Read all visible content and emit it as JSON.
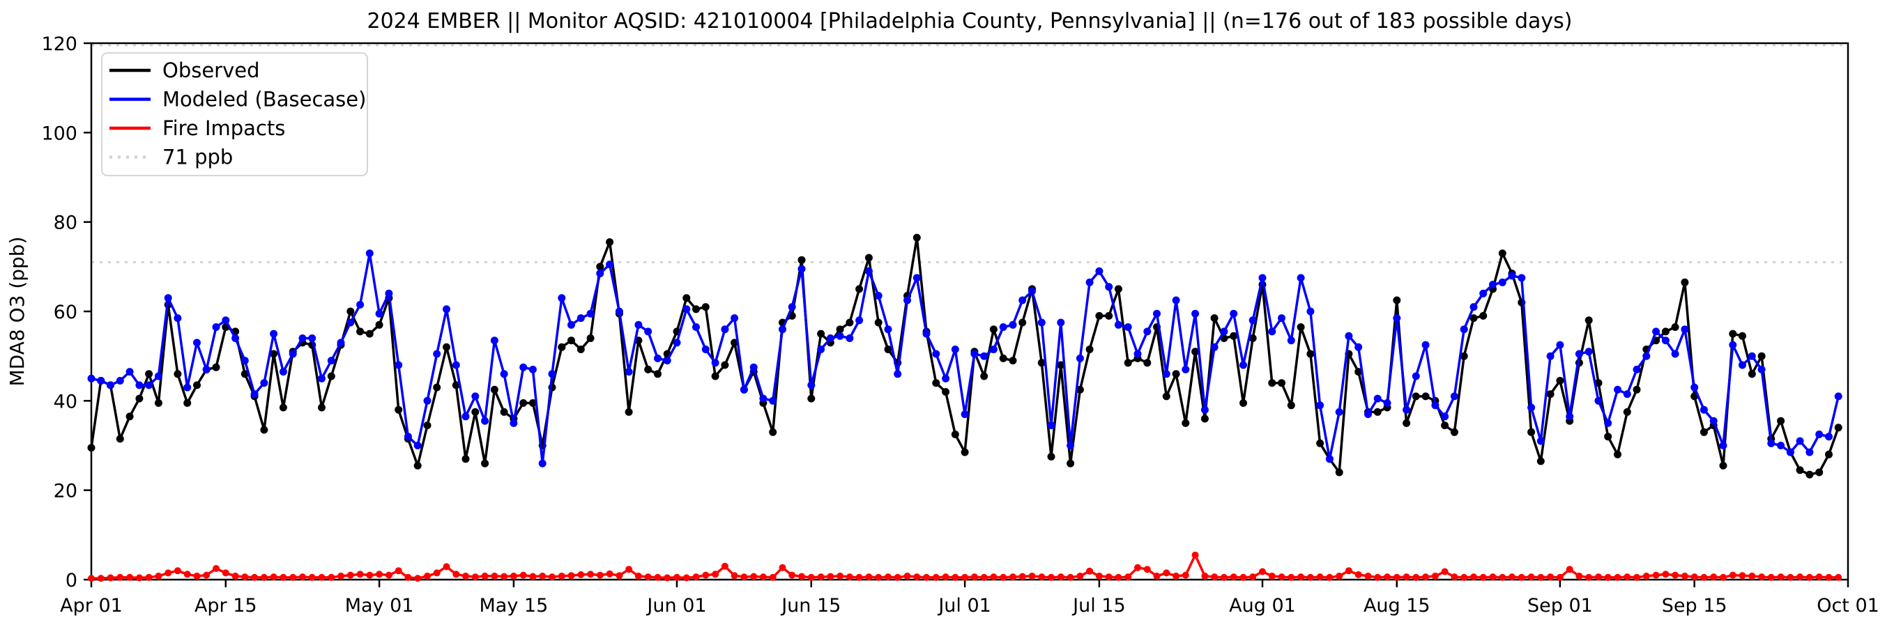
{
  "title": "2024 EMBER || Monitor AQSID: 421010004 [Philadelphia County, Pennsylvania] || (n=176 out of 183 possible days)",
  "axes": {
    "ylabel": "MDA8 O3 (ppb)",
    "ylim": [
      0,
      120
    ],
    "yticks": [
      0,
      20,
      40,
      60,
      80,
      100,
      120
    ],
    "xticks": [
      {
        "label": "Apr 01",
        "day": 0
      },
      {
        "label": "Apr 15",
        "day": 14
      },
      {
        "label": "May 01",
        "day": 30
      },
      {
        "label": "May 15",
        "day": 44
      },
      {
        "label": "Jun 01",
        "day": 61
      },
      {
        "label": "Jun 15",
        "day": 75
      },
      {
        "label": "Jul 01",
        "day": 91
      },
      {
        "label": "Jul 15",
        "day": 105
      },
      {
        "label": "Aug 01",
        "day": 122
      },
      {
        "label": "Aug 15",
        "day": 136
      },
      {
        "label": "Sep 01",
        "day": 153
      },
      {
        "label": "Sep 15",
        "day": 167
      },
      {
        "label": "Oct 01",
        "day": 183
      }
    ]
  },
  "legend": [
    {
      "label": "Observed",
      "color": "#000000",
      "style": "solid"
    },
    {
      "label": "Modeled (Basecase)",
      "color": "#0000ff",
      "style": "solid"
    },
    {
      "label": "Fire Impacts",
      "color": "#ff0000",
      "style": "solid"
    },
    {
      "label": "71 ppb",
      "color": "#d3d3d3",
      "style": "dotted"
    }
  ],
  "chart_data": {
    "type": "line",
    "title": "2024 EMBER || Monitor AQSID: 421010004 [Philadelphia County, Pennsylvania] || (n=176 out of 183 possible days)",
    "ylabel": "MDA8 O3 (ppb)",
    "ylim": [
      0,
      120
    ],
    "grid": false,
    "legend_position": "upper left",
    "x_start": "2024-04-01",
    "x_end": "2024-09-30",
    "x_step": "1 day",
    "n_points": 183,
    "threshold_lines_ppb": [
      71,
      120
    ],
    "threshold_label": "71 ppb",
    "series": [
      {
        "name": "Observed",
        "color": "#000000",
        "marker": "circle",
        "values": [
          29.5,
          44.5,
          43.5,
          31.5,
          36.5,
          40.5,
          46,
          39.5,
          61.5,
          46,
          39.5,
          43.5,
          47,
          47.5,
          56.5,
          55.5,
          46,
          41,
          33.5,
          50.5,
          38.5,
          51,
          53,
          52.5,
          38.5,
          45.5,
          52.5,
          60,
          55.5,
          55,
          57,
          63,
          38,
          31.5,
          25.5,
          34.5,
          43,
          52,
          43.5,
          27,
          37.5,
          26,
          42.5,
          37.5,
          36,
          39.5,
          39.5,
          30,
          43,
          52,
          53.5,
          51.5,
          54,
          70,
          75.5,
          59.5,
          37.5,
          53.5,
          47,
          46,
          50.5,
          55.5,
          63,
          60.5,
          61,
          45.5,
          48,
          53,
          42.5,
          46.5,
          39.5,
          33,
          57.5,
          59,
          71.5,
          40.5,
          55,
          53,
          56,
          57.5,
          65,
          72,
          57.5,
          51.5,
          48.5,
          63.5,
          76.5,
          55.5,
          44,
          42,
          32.5,
          28.5,
          51,
          45.5,
          56,
          49.5,
          49,
          57.5,
          65,
          48.5,
          27.5,
          48,
          26,
          42.5,
          51.5,
          59,
          59,
          65,
          48.5,
          49.5,
          48.5,
          56.5,
          41,
          46,
          35,
          51,
          36,
          58.5,
          54,
          54.5,
          39.5,
          54,
          66,
          44,
          44,
          39,
          56.5,
          50.5,
          30.5,
          27,
          24,
          50.5,
          46.5,
          37.5,
          37.5,
          38.5,
          62.5,
          35,
          41,
          41,
          40,
          34.5,
          33,
          50,
          58.5,
          59,
          65,
          73,
          68.5,
          62,
          33,
          26.5,
          41.5,
          44.5,
          35.5,
          48.5,
          58,
          44,
          32,
          28,
          37.5,
          42.5,
          51.5,
          53.5,
          55.5,
          56.5,
          66.5,
          41,
          33,
          34.5,
          25.5,
          55,
          54.5,
          46,
          50,
          31.5,
          35.5,
          28.5,
          24.5,
          23.5,
          24,
          28,
          34
        ]
      },
      {
        "name": "Modeled (Basecase)",
        "color": "#0000ff",
        "marker": "circle",
        "values": [
          45,
          44.5,
          43.5,
          44.5,
          46.5,
          43.5,
          43.5,
          45.5,
          63,
          58.5,
          43,
          53,
          47,
          56.5,
          58,
          54,
          49,
          41.5,
          44,
          55,
          46.5,
          50.5,
          54,
          54,
          45,
          49,
          53,
          57.5,
          61.5,
          73,
          59.5,
          64,
          48,
          32,
          30,
          40,
          50.5,
          60.5,
          48,
          36.5,
          41,
          35.5,
          53.5,
          46,
          35,
          47.5,
          47,
          26,
          46,
          63,
          57,
          58.5,
          59.5,
          68.5,
          70.5,
          60,
          46.5,
          57,
          55.5,
          49.5,
          49,
          53,
          60.5,
          56.5,
          51.5,
          48.5,
          56,
          58.5,
          42.5,
          47.5,
          40.5,
          40,
          56,
          61,
          69.5,
          43.5,
          51.5,
          54,
          54.5,
          54,
          58,
          69,
          63.5,
          56,
          46,
          62.5,
          67.5,
          55,
          50.5,
          45,
          51.5,
          37,
          50.5,
          50,
          51.5,
          56.5,
          57,
          62.5,
          64.5,
          57.5,
          34.5,
          57.5,
          30,
          49.5,
          66.5,
          69,
          65.5,
          57,
          56.5,
          50.5,
          55.5,
          59.5,
          46,
          62.5,
          47,
          59.5,
          38,
          52,
          55.5,
          59.5,
          48,
          58,
          67.5,
          55.5,
          58.5,
          53.5,
          67.5,
          60,
          39,
          27,
          37.5,
          54.5,
          52,
          37,
          40.5,
          39.5,
          58.5,
          38,
          45.5,
          52.5,
          39,
          36.5,
          41,
          56,
          61,
          64,
          66,
          66.5,
          68,
          67.5,
          38.5,
          31,
          50,
          52.5,
          36.5,
          50.5,
          51,
          40,
          35,
          42.5,
          41.5,
          47,
          50,
          55.5,
          53.5,
          50.5,
          56,
          43,
          38,
          35.5,
          30,
          52.5,
          48,
          50,
          47,
          30.5,
          30,
          28.5,
          31,
          28.5,
          32.5,
          32,
          41
        ]
      },
      {
        "name": "Fire Impacts",
        "color": "#ff0000",
        "marker": "circle",
        "values": [
          0.3,
          0.3,
          0.4,
          0.5,
          0.5,
          0.4,
          0.5,
          0.8,
          1.5,
          2,
          1.2,
          0.8,
          1,
          2.5,
          1.5,
          0.8,
          0.6,
          0.5,
          0.5,
          0.6,
          0.5,
          0.5,
          0.6,
          0.5,
          0.5,
          0.5,
          0.8,
          1,
          1.2,
          1,
          1.2,
          1,
          2,
          0.5,
          0.3,
          0.8,
          1.5,
          2.9,
          1.2,
          0.8,
          0.6,
          0.8,
          0.8,
          0.7,
          0.8,
          1,
          0.7,
          0.8,
          0.6,
          0.8,
          0.9,
          1.1,
          1.2,
          1,
          1.3,
          0.9,
          2.3,
          0.8,
          0.6,
          0.5,
          0.4,
          0.5,
          0.4,
          0.6,
          1,
          1.2,
          3,
          0.9,
          0.6,
          0.7,
          0.6,
          0.5,
          2.7,
          1,
          0.7,
          0.5,
          0.6,
          0.7,
          0.8,
          0.6,
          0.5,
          0.6,
          0.5,
          0.6,
          0.5,
          0.8,
          0.6,
          0.5,
          0.5,
          0.6,
          0.5,
          0.5,
          0.6,
          0.5,
          0.6,
          0.5,
          0.6,
          0.7,
          0.8,
          0.6,
          0.5,
          0.6,
          0.5,
          0.8,
          1.9,
          0.8,
          0.6,
          0.5,
          0.6,
          2.7,
          2.3,
          0.8,
          1.5,
          0.8,
          1,
          5.5,
          0.8,
          0.6,
          0.5,
          0.6,
          0.5,
          0.6,
          1.8,
          0.8,
          0.6,
          0.5,
          0.6,
          0.5,
          0.6,
          0.5,
          0.8,
          2,
          1.1,
          0.8,
          0.5,
          0.6,
          0.5,
          0.6,
          0.5,
          0.6,
          0.8,
          1.8,
          0.6,
          0.5,
          0.6,
          0.5,
          0.6,
          0.5,
          0.6,
          0.5,
          0.6,
          0.5,
          0.6,
          0.5,
          2.3,
          0.8,
          0.5,
          0.6,
          0.5,
          0.5,
          0.6,
          0.5,
          0.8,
          1,
          1.2,
          1,
          0.8,
          0.6,
          0.5,
          0.6,
          0.5,
          1,
          0.9,
          0.8,
          0.6,
          0.5,
          0.6,
          0.5,
          0.6,
          0.5,
          0.6,
          0.5,
          0.5
        ]
      }
    ]
  }
}
